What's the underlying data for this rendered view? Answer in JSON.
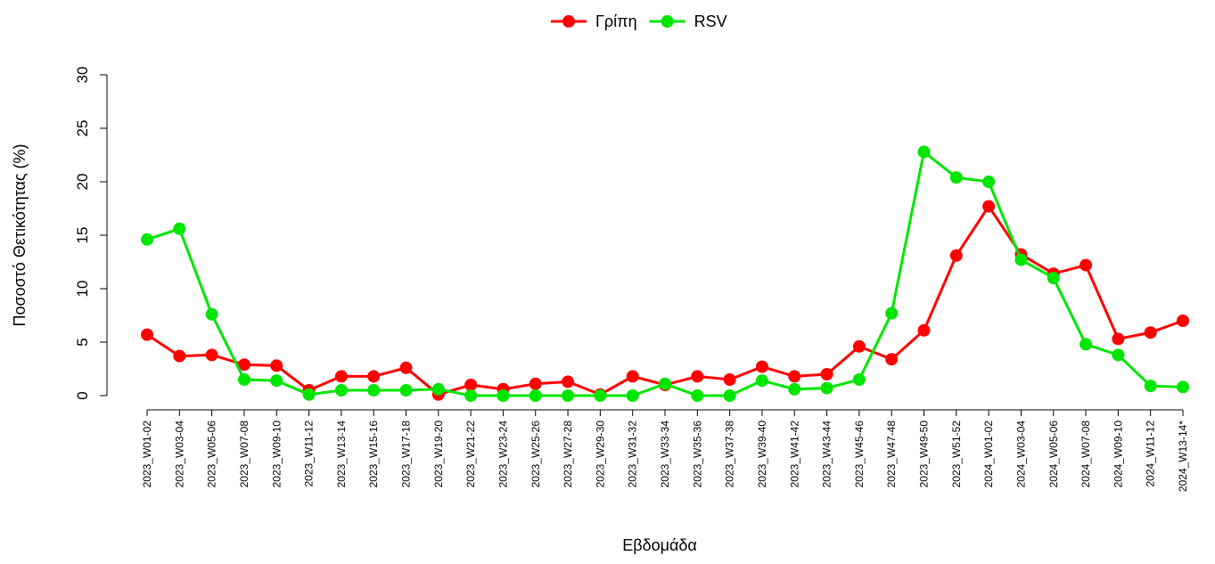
{
  "chart_data": {
    "type": "line",
    "categories": [
      "2023_W01-02",
      "2023_W03-04",
      "2023_W05-06",
      "2023_W07-08",
      "2023_W09-10",
      "2023_W11-12",
      "2023_W13-14",
      "2023_W15-16",
      "2023_W17-18",
      "2023_W19-20",
      "2023_W21-22",
      "2023_W23-24",
      "2023_W25-26",
      "2023_W27-28",
      "2023_W29-30",
      "2023_W31-32",
      "2023_W33-34",
      "2023_W35-36",
      "2023_W37-38",
      "2023_W39-40",
      "2023_W41-42",
      "2023_W43-44",
      "2023_W45-46",
      "2023_W47-48",
      "2023_W49-50",
      "2023_W51-52",
      "2024_W01-02",
      "2024_W03-04",
      "2024_W05-06",
      "2024_W07-08",
      "2024_W09-10",
      "2024_W11-12",
      "2024_W13-14*"
    ],
    "series": [
      {
        "name": "Γρίπη",
        "color": "#ff0000",
        "values": [
          5.7,
          3.7,
          3.8,
          2.9,
          2.8,
          0.5,
          1.8,
          1.8,
          2.6,
          0.1,
          1.0,
          0.6,
          1.1,
          1.3,
          0.1,
          1.8,
          1.0,
          1.8,
          1.5,
          2.7,
          1.8,
          2.0,
          4.6,
          3.4,
          6.1,
          13.1,
          17.7,
          13.2,
          11.4,
          12.2,
          5.3,
          5.9,
          7.0
        ]
      },
      {
        "name": "RSV",
        "color": "#00e600",
        "values": [
          14.6,
          15.6,
          7.6,
          1.5,
          1.4,
          0.1,
          0.5,
          0.5,
          0.5,
          0.6,
          0.0,
          0.0,
          0.0,
          0.0,
          0.0,
          0.0,
          1.1,
          0.0,
          0.0,
          1.4,
          0.6,
          0.7,
          1.5,
          7.7,
          22.8,
          20.4,
          20.0,
          12.7,
          11.0,
          4.8,
          3.8,
          0.9,
          0.8
        ]
      }
    ],
    "x_label": "Εβδομάδα",
    "y_label": "Ποσοστό Θετικότητας (%)",
    "ylim": [
      0,
      30
    ],
    "yticks": [
      0,
      5,
      10,
      15,
      20,
      25,
      30
    ],
    "grid": false,
    "legend": "top"
  }
}
